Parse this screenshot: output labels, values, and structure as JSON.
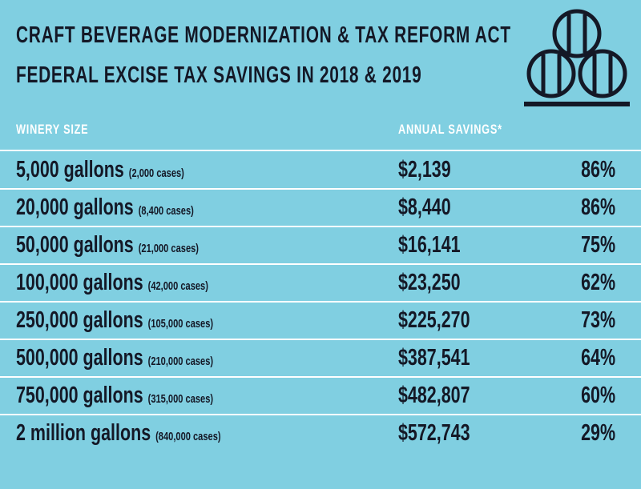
{
  "header": {
    "title_lines": [
      "CRAFT BEVERAGE MODERNIZATION & TAX REFORM ACT",
      "FEDERAL EXCISE TAX SAVINGS IN 2018 & 2019"
    ]
  },
  "table": {
    "columns": [
      "WINERY SIZE",
      "ANNUAL SAVINGS*"
    ],
    "rows": [
      [
        "5,000 gallons",
        "(2,000 cases)",
        "$2,139",
        "86%"
      ],
      [
        "20,000 gallons",
        "(8,400 cases)",
        "$8,440",
        "86%"
      ],
      [
        "50,000 gallons",
        "(21,000 cases)",
        "$16,141",
        "75%"
      ],
      [
        "100,000 gallons",
        "(42,000 cases)",
        "$23,250",
        "62%"
      ],
      [
        "250,000 gallons",
        "(105,000 cases)",
        "$225,270",
        "73%"
      ],
      [
        "500,000 gallons",
        "(210,000 cases)",
        "$387,541",
        "64%"
      ],
      [
        "750,000 gallons",
        "(315,000 cases)",
        "$482,807",
        "60%"
      ],
      [
        "2 million gallons",
        "(840,000 cases)",
        "$572,743",
        "29%"
      ]
    ]
  }
}
